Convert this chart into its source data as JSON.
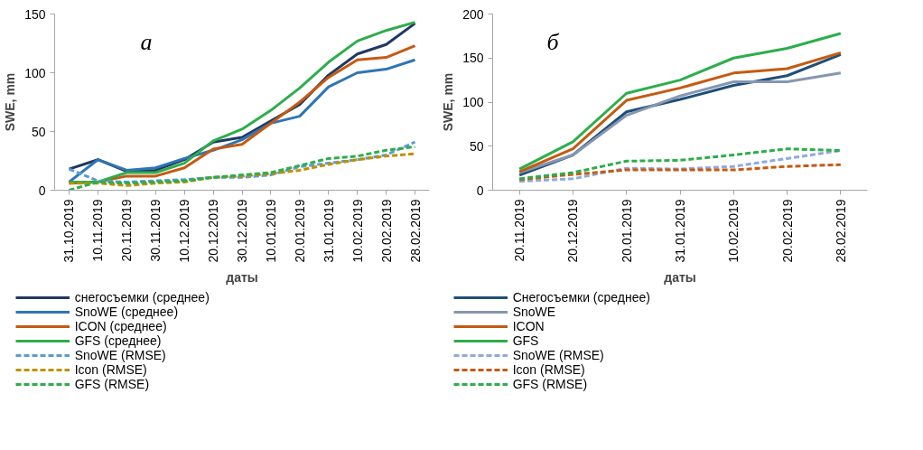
{
  "chart_data": [
    {
      "type": "line",
      "annotations": [
        "а"
      ],
      "xlabel": "даты",
      "ylabel": "SWE, mm",
      "categories": [
        "31.10.2019",
        "10.11.2019",
        "20.11.2019",
        "30.11.2019",
        "10.12.2019",
        "20.12.2019",
        "30.12.2019",
        "10.01.2019",
        "20.01.2019",
        "31.01.2019",
        "10.02.2019",
        "20.02.2019",
        "28.02.2019"
      ],
      "ylim": [
        0,
        150
      ],
      "yticks": [
        0,
        50,
        100,
        150
      ],
      "grid": false,
      "legend": "bottom",
      "marker": "none",
      "series": [
        {
          "name": "снегосъемки (среднее)",
          "color": "#203864",
          "values": [
            18,
            26,
            16,
            17,
            26,
            41,
            45,
            59,
            73,
            98,
            116,
            124,
            142
          ]
        },
        {
          "name": "SnoWE (среднее)",
          "color": "#2e75b6",
          "values": [
            7,
            26,
            17,
            19,
            27,
            34,
            43,
            57,
            63,
            88,
            100,
            103,
            111
          ]
        },
        {
          "name": "ICON (среднее)",
          "color": "#c55a11",
          "values": [
            6,
            7,
            12,
            12,
            19,
            35,
            39,
            57,
            75,
            96,
            111,
            113,
            123
          ]
        },
        {
          "name": "GFS (среднее)",
          "color": "#2ead4b",
          "values": [
            7,
            7,
            15,
            15,
            23,
            42,
            52,
            68,
            87,
            109,
            127,
            136,
            143
          ]
        },
        {
          "name": "SnoWE (RMSE)",
          "color": "#5b9bd5",
          "line_style": "dashed",
          "values": [
            18,
            8,
            7,
            8,
            9,
            11,
            11,
            13,
            20,
            23,
            26,
            30,
            41
          ]
        },
        {
          "name": "Icon (RMSE)",
          "color": "#bf9000",
          "line_style": "dashed",
          "values": [
            6,
            6,
            4,
            6,
            7,
            11,
            12,
            14,
            17,
            22,
            26,
            29,
            31
          ]
        },
        {
          "name": "GFS (RMSE)",
          "color": "#2ead4b",
          "line_style": "dashed",
          "values": [
            0,
            7,
            6,
            7,
            8,
            11,
            13,
            15,
            21,
            27,
            29,
            34,
            37
          ]
        }
      ]
    },
    {
      "type": "line",
      "annotations": [
        "б"
      ],
      "xlabel": "даты",
      "ylabel": "SWE, mm",
      "categories": [
        "20.11.2019",
        "20.12.2019",
        "20.01.2019",
        "31.01.2019",
        "10.02.2019",
        "20.02.2019",
        "28.02.2019"
      ],
      "ylim": [
        0,
        200
      ],
      "yticks": [
        0,
        50,
        100,
        150,
        200
      ],
      "grid": false,
      "legend": "bottom",
      "marker": "none",
      "series": [
        {
          "name": "Снегосъемки (среднее)",
          "color": "#1f4e79",
          "values": [
            17,
            40,
            89,
            103,
            119,
            130,
            154
          ]
        },
        {
          "name": "SnoWE",
          "color": "#8497b0",
          "values": [
            20,
            40,
            85,
            107,
            123,
            123,
            133
          ]
        },
        {
          "name": "ICON",
          "color": "#c55a11",
          "values": [
            21,
            47,
            102,
            116,
            133,
            138,
            156
          ]
        },
        {
          "name": "GFS",
          "color": "#2ead4b",
          "values": [
            24,
            55,
            110,
            125,
            150,
            161,
            178
          ]
        },
        {
          "name": "SnoWE (RMSE)",
          "color": "#8faadc",
          "line_style": "dashed",
          "values": [
            10,
            13,
            25,
            24,
            27,
            36,
            45
          ]
        },
        {
          "name": "Icon (RMSE)",
          "color": "#c55a11",
          "line_style": "dashed",
          "values": [
            12,
            18,
            23,
            23,
            23,
            27,
            29
          ]
        },
        {
          "name": "GFS (RMSE)",
          "color": "#2ead4b",
          "line_style": "dashed",
          "values": [
            13,
            20,
            33,
            34,
            40,
            47,
            45
          ]
        }
      ]
    }
  ]
}
